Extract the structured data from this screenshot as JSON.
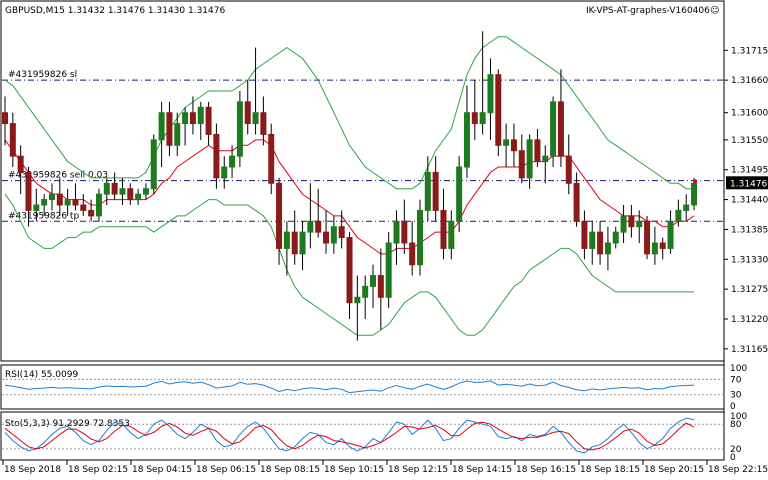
{
  "header": {
    "symbol_line": "GBPUSD,M15  1.31432 1.31476 1.31430 1.31476",
    "ea_label": "IK-VPS-AT-graphes-V160406",
    "smiley": "☺"
  },
  "orders": {
    "sl": "#431959826 sl",
    "sell": "#431959826 sell 0.03",
    "tp": "#431959826 tp"
  },
  "current_price": "1.31476",
  "main_price_ticks": [
    "1.31715",
    "1.31660",
    "1.31600",
    "1.31550",
    "1.31495",
    "1.31440",
    "1.31385",
    "1.31330",
    "1.31275",
    "1.31220",
    "1.31165"
  ],
  "time_ticks": [
    "18 Sep 2018",
    "18 Sep 02:15",
    "18 Sep 04:15",
    "18 Sep 06:15",
    "18 Sep 08:15",
    "18 Sep 10:15",
    "18 Sep 12:15",
    "18 Sep 14:15",
    "18 Sep 16:15",
    "18 Sep 18:15",
    "18 Sep 20:15",
    "18 Sep 22:15"
  ],
  "rsi": {
    "label": "RSI(14) 55.0099",
    "ticks": [
      "100",
      "70",
      "30",
      "0"
    ]
  },
  "sto": {
    "label": "Sto(5,3,3) 91.2929 72.8353",
    "ticks": [
      "100",
      "80",
      "20",
      "0"
    ]
  },
  "colors": {
    "bull": "#1f7a1f",
    "bear": "#8b1a1a",
    "ma": "#e0001a",
    "bands": "#2fa34a",
    "rsi": "#1e7fd0",
    "sto_main": "#1e7fd0",
    "sto_signal": "#e0001a",
    "order_line": "#1a1a70"
  },
  "chart_data": {
    "type": "candlestick",
    "symbol": "GBPUSD",
    "timeframe": "M15",
    "y_range": [
      1.3115,
      1.3178
    ],
    "sl_level": 1.3166,
    "entry_level": 1.31475,
    "tp_level": 1.314,
    "candles": [
      [
        1.316,
        1.3163,
        1.3154,
        1.3158
      ],
      [
        1.3158,
        1.316,
        1.315,
        1.3152
      ],
      [
        1.3152,
        1.3154,
        1.3145,
        1.3149
      ],
      [
        1.3149,
        1.315,
        1.3139,
        1.3142
      ],
      [
        1.3142,
        1.3146,
        1.314,
        1.3143
      ],
      [
        1.3143,
        1.3145,
        1.3141,
        1.3144
      ],
      [
        1.3144,
        1.3147,
        1.3142,
        1.3145
      ],
      [
        1.3145,
        1.3148,
        1.3141,
        1.3143
      ],
      [
        1.3143,
        1.3146,
        1.3141,
        1.3144
      ],
      [
        1.3144,
        1.3147,
        1.3142,
        1.3143
      ],
      [
        1.3143,
        1.3145,
        1.3141,
        1.3142
      ],
      [
        1.3142,
        1.3144,
        1.314,
        1.3141
      ],
      [
        1.3141,
        1.3146,
        1.314,
        1.3145
      ],
      [
        1.3145,
        1.3148,
        1.3143,
        1.3147
      ],
      [
        1.3147,
        1.3149,
        1.3144,
        1.3145
      ],
      [
        1.3145,
        1.3148,
        1.3143,
        1.3146
      ],
      [
        1.3146,
        1.3147,
        1.3143,
        1.3144
      ],
      [
        1.3144,
        1.3146,
        1.3143,
        1.3145
      ],
      [
        1.3145,
        1.3147,
        1.3144,
        1.3146
      ],
      [
        1.3146,
        1.3156,
        1.3145,
        1.3155
      ],
      [
        1.3155,
        1.3162,
        1.315,
        1.316
      ],
      [
        1.316,
        1.3162,
        1.3152,
        1.3154
      ],
      [
        1.3154,
        1.316,
        1.3152,
        1.3158
      ],
      [
        1.3158,
        1.3161,
        1.3154,
        1.316
      ],
      [
        1.316,
        1.3163,
        1.3156,
        1.3158
      ],
      [
        1.3158,
        1.3162,
        1.3155,
        1.3161
      ],
      [
        1.3161,
        1.3162,
        1.3154,
        1.3156
      ],
      [
        1.3156,
        1.3158,
        1.3146,
        1.3148
      ],
      [
        1.3148,
        1.3152,
        1.3146,
        1.315
      ],
      [
        1.315,
        1.3154,
        1.3148,
        1.3152
      ],
      [
        1.3152,
        1.3164,
        1.315,
        1.3162
      ],
      [
        1.3162,
        1.3166,
        1.3156,
        1.3158
      ],
      [
        1.3158,
        1.3172,
        1.3156,
        1.316
      ],
      [
        1.316,
        1.3163,
        1.3154,
        1.3156
      ],
      [
        1.3156,
        1.3158,
        1.3145,
        1.3147
      ],
      [
        1.3147,
        1.3148,
        1.3132,
        1.3135
      ],
      [
        1.3135,
        1.314,
        1.313,
        1.3138
      ],
      [
        1.3138,
        1.3142,
        1.3132,
        1.3134
      ],
      [
        1.3134,
        1.314,
        1.3131,
        1.3138
      ],
      [
        1.3138,
        1.3147,
        1.3135,
        1.314
      ],
      [
        1.314,
        1.3146,
        1.3137,
        1.3138
      ],
      [
        1.3138,
        1.3142,
        1.3134,
        1.3136
      ],
      [
        1.3136,
        1.3141,
        1.3134,
        1.3139
      ],
      [
        1.3139,
        1.3142,
        1.3135,
        1.3137
      ],
      [
        1.3137,
        1.3138,
        1.3122,
        1.3125
      ],
      [
        1.3125,
        1.313,
        1.3118,
        1.3126
      ],
      [
        1.3126,
        1.313,
        1.3122,
        1.3128
      ],
      [
        1.3128,
        1.3132,
        1.3124,
        1.313
      ],
      [
        1.313,
        1.3135,
        1.312,
        1.3126
      ],
      [
        1.3126,
        1.3138,
        1.3124,
        1.3136
      ],
      [
        1.3136,
        1.3142,
        1.3132,
        1.314
      ],
      [
        1.314,
        1.3144,
        1.3134,
        1.3136
      ],
      [
        1.3136,
        1.314,
        1.313,
        1.3132
      ],
      [
        1.3132,
        1.3144,
        1.313,
        1.3142
      ],
      [
        1.3142,
        1.3152,
        1.314,
        1.3149
      ],
      [
        1.3149,
        1.3152,
        1.314,
        1.3142
      ],
      [
        1.3142,
        1.3146,
        1.3133,
        1.3135
      ],
      [
        1.3135,
        1.3142,
        1.3133,
        1.314
      ],
      [
        1.314,
        1.3152,
        1.3138,
        1.315
      ],
      [
        1.315,
        1.3165,
        1.3148,
        1.316
      ],
      [
        1.316,
        1.3166,
        1.3155,
        1.3158
      ],
      [
        1.3158,
        1.3175,
        1.3156,
        1.316
      ],
      [
        1.316,
        1.317,
        1.3155,
        1.3167
      ],
      [
        1.3167,
        1.3168,
        1.3152,
        1.3154
      ],
      [
        1.3154,
        1.3158,
        1.315,
        1.3155
      ],
      [
        1.3155,
        1.3158,
        1.315,
        1.3153
      ],
      [
        1.3153,
        1.3156,
        1.3147,
        1.3148
      ],
      [
        1.3148,
        1.3156,
        1.3146,
        1.3155
      ],
      [
        1.3155,
        1.3157,
        1.315,
        1.3151
      ],
      [
        1.3151,
        1.3154,
        1.3147,
        1.3152
      ],
      [
        1.3152,
        1.3163,
        1.315,
        1.3162
      ],
      [
        1.3162,
        1.3168,
        1.315,
        1.3152
      ],
      [
        1.3152,
        1.3156,
        1.3145,
        1.3147
      ],
      [
        1.3147,
        1.3149,
        1.3139,
        1.314
      ],
      [
        1.314,
        1.3142,
        1.3133,
        1.3135
      ],
      [
        1.3135,
        1.314,
        1.3132,
        1.3138
      ],
      [
        1.3138,
        1.314,
        1.3132,
        1.3134
      ],
      [
        1.3134,
        1.3139,
        1.3131,
        1.3136
      ],
      [
        1.3136,
        1.3139,
        1.3135,
        1.3138
      ],
      [
        1.3138,
        1.3143,
        1.3136,
        1.3141
      ],
      [
        1.3141,
        1.3143,
        1.3137,
        1.3139
      ],
      [
        1.3139,
        1.3142,
        1.3136,
        1.314
      ],
      [
        1.314,
        1.3141,
        1.3133,
        1.3134
      ],
      [
        1.3134,
        1.3139,
        1.3132,
        1.3136
      ],
      [
        1.3136,
        1.3137,
        1.3133,
        1.3135
      ],
      [
        1.3135,
        1.3142,
        1.3134,
        1.314
      ],
      [
        1.314,
        1.3144,
        1.3139,
        1.3142
      ],
      [
        1.3142,
        1.3145,
        1.314,
        1.3143
      ],
      [
        1.3143,
        1.3148,
        1.3142,
        1.3147
      ]
    ],
    "ma": [
      1.3155,
      1.3153,
      1.3151,
      1.3149,
      1.3147,
      1.3146,
      1.3145,
      1.3145,
      1.3144,
      1.3144,
      1.3144,
      1.3143,
      1.3143,
      1.3144,
      1.3144,
      1.3144,
      1.3144,
      1.3144,
      1.3144,
      1.3145,
      1.3147,
      1.3148,
      1.315,
      1.3151,
      1.3152,
      1.3153,
      1.3154,
      1.3153,
      1.3153,
      1.3153,
      1.3154,
      1.3154,
      1.3155,
      1.3155,
      1.3154,
      1.3151,
      1.3149,
      1.3147,
      1.3145,
      1.3144,
      1.3143,
      1.3142,
      1.3141,
      1.3141,
      1.3139,
      1.3137,
      1.3136,
      1.3135,
      1.3134,
      1.3134,
      1.3135,
      1.3135,
      1.3135,
      1.3136,
      1.3137,
      1.3138,
      1.3138,
      1.3138,
      1.314,
      1.3143,
      1.3145,
      1.3147,
      1.3149,
      1.315,
      1.315,
      1.315,
      1.315,
      1.3151,
      1.3151,
      1.3151,
      1.3152,
      1.3152,
      1.3152,
      1.315,
      1.3148,
      1.3146,
      1.3144,
      1.3143,
      1.3142,
      1.3141,
      1.3141,
      1.3141,
      1.314,
      1.314,
      1.3139,
      1.3139,
      1.314,
      1.314,
      1.3141
    ],
    "band_upper": [
      1.3166,
      1.3165,
      1.3163,
      1.3161,
      1.3159,
      1.3157,
      1.3155,
      1.3153,
      1.3151,
      1.315,
      1.3149,
      1.3148,
      1.3148,
      1.3148,
      1.3148,
      1.3148,
      1.3148,
      1.3148,
      1.3149,
      1.3152,
      1.3155,
      1.3157,
      1.3159,
      1.3161,
      1.3162,
      1.3163,
      1.3164,
      1.3164,
      1.3164,
      1.3164,
      1.3165,
      1.3166,
      1.3168,
      1.3169,
      1.317,
      1.3171,
      1.3172,
      1.3171,
      1.317,
      1.3168,
      1.3166,
      1.3163,
      1.316,
      1.3157,
      1.3154,
      1.3152,
      1.315,
      1.3149,
      1.3148,
      1.3147,
      1.3146,
      1.3146,
      1.3146,
      1.3147,
      1.315,
      1.3153,
      1.3155,
      1.3157,
      1.3162,
      1.3167,
      1.317,
      1.3172,
      1.3173,
      1.3174,
      1.3174,
      1.3173,
      1.3172,
      1.3171,
      1.317,
      1.3169,
      1.3168,
      1.3167,
      1.3165,
      1.3163,
      1.3161,
      1.3159,
      1.3157,
      1.3155,
      1.3154,
      1.3153,
      1.3152,
      1.3151,
      1.315,
      1.3149,
      1.3148,
      1.3147,
      1.3147,
      1.3146,
      1.3146
    ],
    "band_lower": [
      1.3145,
      1.3143,
      1.314,
      1.3137,
      1.3136,
      1.3135,
      1.3135,
      1.3136,
      1.3137,
      1.3137,
      1.3138,
      1.3138,
      1.3139,
      1.3139,
      1.3139,
      1.3139,
      1.3139,
      1.3139,
      1.3139,
      1.3138,
      1.3139,
      1.314,
      1.3141,
      1.3141,
      1.3142,
      1.3143,
      1.3144,
      1.3144,
      1.3143,
      1.3143,
      1.3143,
      1.3143,
      1.3142,
      1.3141,
      1.3139,
      1.3135,
      1.3131,
      1.3128,
      1.3126,
      1.3125,
      1.3124,
      1.3123,
      1.3122,
      1.3121,
      1.312,
      1.3119,
      1.3119,
      1.3119,
      1.312,
      1.3121,
      1.3123,
      1.3125,
      1.3126,
      1.3127,
      1.3127,
      1.3126,
      1.3124,
      1.3122,
      1.312,
      1.3119,
      1.3119,
      1.312,
      1.3122,
      1.3124,
      1.3126,
      1.3128,
      1.3129,
      1.3131,
      1.3132,
      1.3133,
      1.3134,
      1.3135,
      1.3135,
      1.3134,
      1.3132,
      1.313,
      1.3129,
      1.3128,
      1.3127,
      1.3127,
      1.3127,
      1.3127,
      1.3127,
      1.3127,
      1.3127,
      1.3127,
      1.3127,
      1.3127,
      1.3127
    ],
    "rsi_values": [
      55,
      52,
      48,
      44,
      46,
      47,
      49,
      47,
      48,
      47,
      46,
      45,
      50,
      53,
      51,
      52,
      50,
      51,
      52,
      60,
      65,
      58,
      62,
      64,
      60,
      63,
      56,
      47,
      50,
      53,
      62,
      57,
      59,
      55,
      47,
      38,
      44,
      40,
      45,
      48,
      46,
      43,
      47,
      44,
      35,
      38,
      40,
      42,
      39,
      48,
      54,
      48,
      44,
      52,
      58,
      50,
      44,
      50,
      60,
      66,
      62,
      63,
      66,
      55,
      57,
      55,
      52,
      58,
      53,
      55,
      63,
      54,
      49,
      43,
      40,
      45,
      42,
      45,
      47,
      49,
      47,
      48,
      43,
      46,
      45,
      51,
      53,
      54,
      55
    ],
    "sto_main": [
      60,
      40,
      25,
      15,
      20,
      35,
      55,
      70,
      75,
      60,
      40,
      30,
      40,
      65,
      85,
      80,
      60,
      45,
      55,
      80,
      90,
      75,
      55,
      45,
      60,
      80,
      70,
      40,
      25,
      30,
      55,
      75,
      85,
      70,
      45,
      20,
      15,
      25,
      45,
      60,
      55,
      35,
      30,
      45,
      25,
      15,
      25,
      45,
      35,
      60,
      85,
      80,
      55,
      70,
      90,
      70,
      40,
      45,
      70,
      90,
      85,
      80,
      75,
      50,
      45,
      50,
      40,
      55,
      50,
      55,
      75,
      60,
      35,
      15,
      10,
      25,
      30,
      45,
      65,
      80,
      60,
      35,
      20,
      30,
      45,
      70,
      85,
      95,
      91
    ],
    "sto_signal": [
      70,
      55,
      40,
      25,
      20,
      25,
      40,
      55,
      68,
      68,
      58,
      44,
      37,
      45,
      63,
      77,
      75,
      62,
      53,
      60,
      75,
      82,
      73,
      58,
      53,
      62,
      70,
      63,
      45,
      32,
      37,
      53,
      72,
      77,
      67,
      45,
      27,
      20,
      28,
      43,
      53,
      50,
      40,
      37,
      33,
      28,
      22,
      28,
      35,
      47,
      60,
      75,
      73,
      68,
      72,
      77,
      67,
      52,
      52,
      68,
      82,
      85,
      80,
      68,
      57,
      48,
      45,
      48,
      48,
      53,
      60,
      63,
      57,
      37,
      20,
      17,
      22,
      33,
      47,
      63,
      68,
      58,
      38,
      28,
      32,
      48,
      67,
      83,
      73
    ]
  }
}
